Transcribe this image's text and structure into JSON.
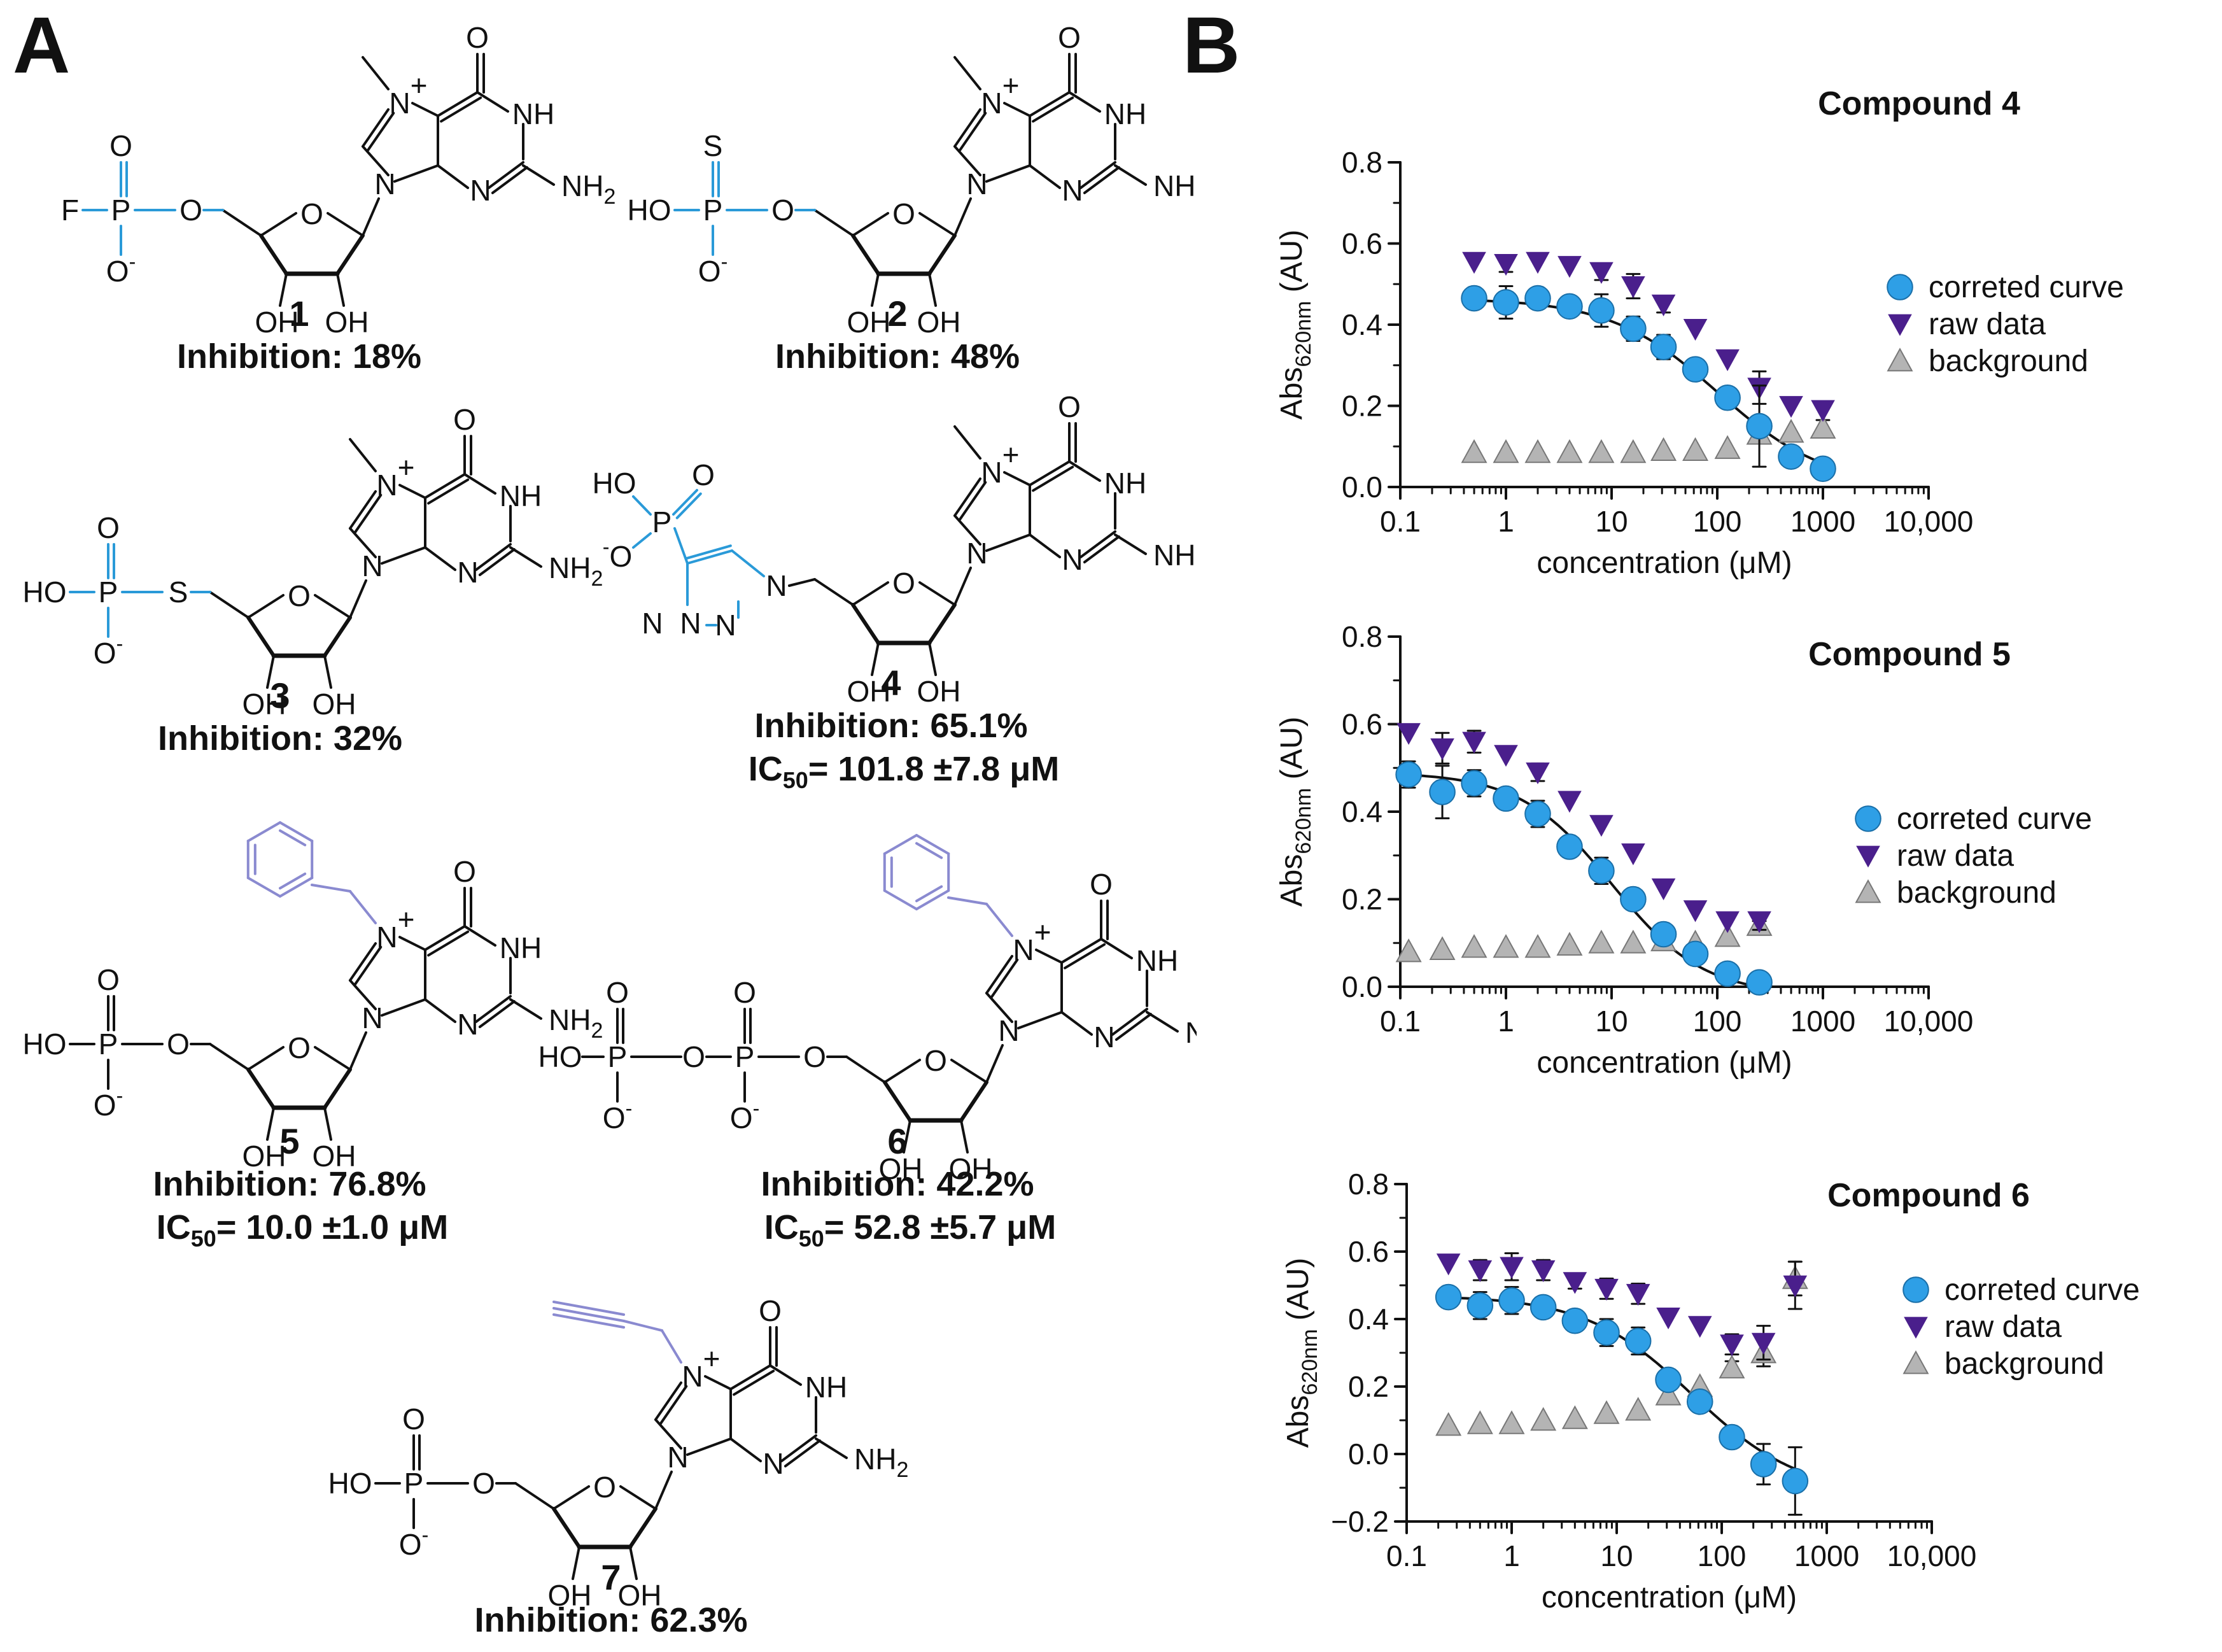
{
  "panels": {
    "a_label": "A",
    "b_label": "B"
  },
  "colors": {
    "modified_group": "#2a9ad8",
    "n7_substituent": "#8a8ad0",
    "corrected": "#2e9fe6",
    "raw": "#4a1f8c",
    "background": "#b4b4b4",
    "ink": "#111111"
  },
  "compounds": [
    {
      "num": "1",
      "inhibition": "Inhibition: 18%"
    },
    {
      "num": "2",
      "inhibition": "Inhibition: 48%"
    },
    {
      "num": "3",
      "inhibition": "Inhibition: 32%"
    },
    {
      "num": "4",
      "inhibition": "Inhibition: 65.1%",
      "ic50_label": "IC",
      "ic50_sub": "50",
      "ic50_value": "= 101.8 ±7.8 μM"
    },
    {
      "num": "5",
      "inhibition": "Inhibition: 76.8%",
      "ic50_label": "IC",
      "ic50_sub": "50",
      "ic50_value": "= 10.0 ±1.0 μM"
    },
    {
      "num": "6",
      "inhibition": "Inhibition: 42.2%",
      "ic50_label": "IC",
      "ic50_sub": "50",
      "ic50_value": "= 52.8 ±5.7 μM"
    },
    {
      "num": "7",
      "inhibition": "Inhibition: 62.3%"
    }
  ],
  "atoms": {
    "O": "O",
    "N": "N",
    "P": "P",
    "S": "S",
    "F": "F",
    "NH": "NH",
    "NH2": "NH",
    "sub2": "2",
    "OH": "OH",
    "HO": "HO",
    "Ominus": "O",
    "minus": "-",
    "plus": "+"
  },
  "chart_data": [
    {
      "type": "scatter",
      "title": "Compound 4",
      "xlabel": "concentration (μM)",
      "ylabel_main": "Abs",
      "ylabel_sub": "620nm",
      "ylabel_unit": " (AU)",
      "xscale": "log",
      "xlim": [
        0.1,
        10000
      ],
      "xticks": [
        0.1,
        1,
        10,
        100,
        1000,
        10000
      ],
      "xtick_labels": [
        "0.1",
        "1",
        "10",
        "100",
        "1000",
        "10,000"
      ],
      "ylim": [
        0.0,
        0.8
      ],
      "yticks": [
        0.0,
        0.2,
        0.4,
        0.6,
        0.8
      ],
      "ytick_labels": [
        "0.0",
        "0.2",
        "0.4",
        "0.6",
        "0.8"
      ],
      "legend": [
        "correted curve",
        "raw data",
        "background"
      ],
      "legend_position": "right",
      "series": [
        {
          "name": "correted curve",
          "marker": "circle",
          "x": [
            0.5,
            1,
            2,
            4,
            8,
            16,
            31,
            62,
            125,
            250,
            500,
            1000
          ],
          "y": [
            0.465,
            0.455,
            0.465,
            0.445,
            0.435,
            0.39,
            0.345,
            0.29,
            0.22,
            0.15,
            0.075,
            0.045
          ],
          "err": [
            0.025,
            0.04,
            0.025,
            0.02,
            0.04,
            0.03,
            0.03,
            0.02,
            0.02,
            0.1,
            0.0,
            0.0
          ]
        },
        {
          "name": "raw data",
          "marker": "triangle-down",
          "x": [
            0.5,
            1,
            2,
            4,
            8,
            16,
            31,
            62,
            125,
            250,
            500,
            1000
          ],
          "y": [
            0.555,
            0.55,
            0.555,
            0.545,
            0.53,
            0.495,
            0.45,
            0.39,
            0.315,
            0.245,
            0.2,
            0.19
          ],
          "err": [
            0.0,
            0.02,
            0.0,
            0.0,
            0.02,
            0.03,
            0.02,
            0.0,
            0.0,
            0.04,
            0.0,
            0.0
          ]
        },
        {
          "name": "background",
          "marker": "triangle-up",
          "x": [
            0.5,
            1,
            2,
            4,
            8,
            16,
            31,
            62,
            125,
            250,
            500,
            1000
          ],
          "y": [
            0.085,
            0.085,
            0.085,
            0.085,
            0.085,
            0.085,
            0.09,
            0.09,
            0.095,
            0.13,
            0.135,
            0.145
          ],
          "err": [
            0,
            0,
            0,
            0,
            0,
            0,
            0,
            0,
            0,
            0.02,
            0,
            0.02
          ]
        }
      ],
      "fit_curve": {
        "top": 0.465,
        "bottom": 0.0,
        "ic50": 101.8,
        "hill": 0.85,
        "x_start": 0.5,
        "x_end": 1000
      }
    },
    {
      "type": "scatter",
      "title": "Compound 5",
      "xlabel": "concentration (μM)",
      "ylabel_main": "Abs",
      "ylabel_sub": "620nm",
      "ylabel_unit": " (AU)",
      "xscale": "log",
      "xlim": [
        0.1,
        10000
      ],
      "xticks": [
        0.1,
        1,
        10,
        100,
        1000,
        10000
      ],
      "xtick_labels": [
        "0.1",
        "1",
        "10",
        "100",
        "1000",
        "10,000"
      ],
      "ylim": [
        0.0,
        0.8
      ],
      "yticks": [
        0.0,
        0.2,
        0.4,
        0.6,
        0.8
      ],
      "ytick_labels": [
        "0.0",
        "0.2",
        "0.4",
        "0.6",
        "0.8"
      ],
      "legend": [
        "correted curve",
        "raw data",
        "background"
      ],
      "legend_position": "right",
      "series": [
        {
          "name": "correted curve",
          "marker": "circle",
          "x": [
            0.12,
            0.25,
            0.5,
            1,
            2,
            4,
            8,
            16,
            31,
            62,
            125,
            250
          ],
          "y": [
            0.485,
            0.445,
            0.465,
            0.43,
            0.395,
            0.32,
            0.265,
            0.2,
            0.12,
            0.075,
            0.03,
            0.01
          ],
          "err": [
            0.03,
            0.06,
            0.03,
            0.02,
            0.03,
            0.02,
            0.03,
            0.02,
            0.02,
            0.0,
            0.0,
            0.0
          ]
        },
        {
          "name": "raw data",
          "marker": "triangle-down",
          "x": [
            0.12,
            0.25,
            0.5,
            1,
            2,
            4,
            8,
            16,
            31,
            62,
            125,
            250
          ],
          "y": [
            0.58,
            0.545,
            0.56,
            0.53,
            0.49,
            0.425,
            0.37,
            0.305,
            0.225,
            0.175,
            0.15,
            0.15
          ],
          "err": [
            0.0,
            0.035,
            0.025,
            0.0,
            0.02,
            0.0,
            0.0,
            0.0,
            0.0,
            0.0,
            0.0,
            0.02
          ]
        },
        {
          "name": "background",
          "marker": "triangle-up",
          "x": [
            0.12,
            0.25,
            0.5,
            1,
            2,
            4,
            8,
            16,
            31,
            62,
            125,
            250
          ],
          "y": [
            0.08,
            0.085,
            0.09,
            0.09,
            0.09,
            0.095,
            0.1,
            0.1,
            0.105,
            0.1,
            0.115,
            0.14
          ],
          "err": [
            0,
            0,
            0,
            0,
            0,
            0,
            0,
            0,
            0,
            0,
            0,
            0.01
          ]
        }
      ],
      "fit_curve": {
        "top": 0.49,
        "bottom": -0.02,
        "ic50": 10.0,
        "hill": 1.0,
        "x_start": 0.12,
        "x_end": 250
      }
    },
    {
      "type": "scatter",
      "title": "Compound 6",
      "xlabel": "concentration (μM)",
      "ylabel_main": "Abs",
      "ylabel_sub": "620nm",
      "ylabel_unit": " (AU)",
      "xscale": "log",
      "xlim": [
        0.1,
        10000
      ],
      "xticks": [
        0.1,
        1,
        10,
        100,
        1000,
        10000
      ],
      "xtick_labels": [
        "0.1",
        "1",
        "10",
        "100",
        "1000",
        "10,000"
      ],
      "ylim": [
        -0.2,
        0.8
      ],
      "yticks": [
        -0.2,
        0.0,
        0.2,
        0.4,
        0.6,
        0.8
      ],
      "ytick_labels": [
        "−0.2",
        "0.0",
        "0.2",
        "0.4",
        "0.6",
        "0.8"
      ],
      "legend": [
        "correted curve",
        "raw data",
        "background"
      ],
      "legend_position": "right",
      "series": [
        {
          "name": "correted curve",
          "marker": "circle",
          "x": [
            0.25,
            0.5,
            1,
            2,
            4,
            8,
            16,
            31,
            62,
            125,
            250,
            500
          ],
          "y": [
            0.465,
            0.44,
            0.455,
            0.435,
            0.395,
            0.36,
            0.335,
            0.22,
            0.155,
            0.05,
            -0.03,
            -0.08
          ],
          "err": [
            0.0,
            0.04,
            0.04,
            0.03,
            0.02,
            0.04,
            0.04,
            0.02,
            0.02,
            0.02,
            0.06,
            0.1
          ]
        },
        {
          "name": "raw data",
          "marker": "triangle-down",
          "x": [
            0.25,
            0.5,
            1,
            2,
            4,
            8,
            16,
            31,
            62,
            125,
            250,
            500
          ],
          "y": [
            0.565,
            0.545,
            0.555,
            0.545,
            0.51,
            0.49,
            0.475,
            0.405,
            0.38,
            0.325,
            0.33,
            0.5
          ],
          "err": [
            0.0,
            0.03,
            0.04,
            0.03,
            0.02,
            0.03,
            0.03,
            0.0,
            0.0,
            0.03,
            0.05,
            0.07
          ]
        },
        {
          "name": "background",
          "marker": "triangle-up",
          "x": [
            0.25,
            0.5,
            1,
            2,
            4,
            8,
            16,
            31,
            62,
            125,
            250,
            500
          ],
          "y": [
            0.085,
            0.09,
            0.09,
            0.1,
            0.105,
            0.12,
            0.13,
            0.175,
            0.2,
            0.255,
            0.3,
            0.52
          ],
          "err": [
            0,
            0,
            0,
            0,
            0,
            0,
            0,
            0,
            0,
            0.02,
            0.04,
            0.05
          ]
        }
      ],
      "fit_curve": {
        "top": 0.47,
        "bottom": -0.12,
        "ic50": 52.8,
        "hill": 0.85,
        "x_start": 0.25,
        "x_end": 500
      }
    }
  ]
}
